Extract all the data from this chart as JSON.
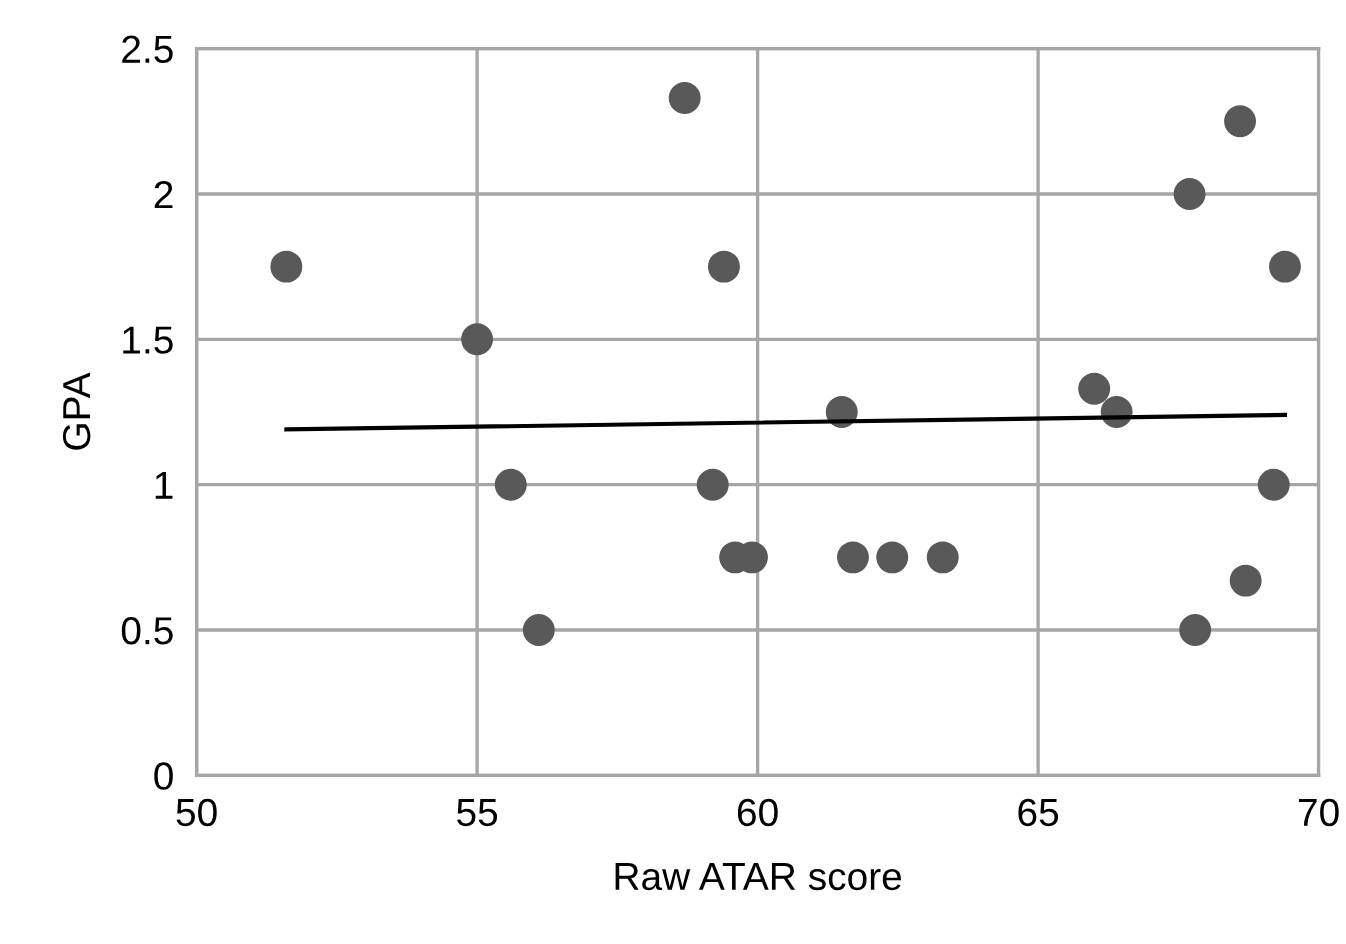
{
  "chart_data": {
    "type": "scatter",
    "xlabel": "Raw ATAR score",
    "ylabel": "GPA",
    "series": [
      {
        "color": "#595959",
        "marker": "circle",
        "x": [
          51.6,
          55.0,
          55.6,
          56.1,
          58.7,
          59.4,
          59.2,
          59.6,
          59.9,
          61.5,
          61.7,
          62.4,
          63.3,
          66.0,
          66.4,
          67.7,
          68.6,
          69.4,
          69.2,
          68.7,
          67.8
        ],
        "values": [
          1.75,
          1.5,
          1.0,
          0.5,
          2.33,
          1.75,
          1.0,
          0.75,
          0.75,
          1.25,
          0.75,
          0.75,
          0.75,
          1.33,
          1.25,
          2.0,
          2.25,
          1.75,
          1.0,
          0.67,
          0.5
        ]
      },
      {
        "type": "line",
        "color": "#000000",
        "marker": "none",
        "line_style": "solid",
        "x": [
          51.6,
          69.4
        ],
        "values": [
          1.19,
          1.24
        ]
      }
    ],
    "xlim": [
      50,
      70
    ],
    "xticks": [
      50,
      55,
      60,
      65,
      70
    ],
    "ylim": [
      0,
      2.5
    ],
    "yticks": [
      0,
      0.5,
      1,
      1.5,
      2,
      2.5
    ],
    "grid": true,
    "legend": false
  }
}
